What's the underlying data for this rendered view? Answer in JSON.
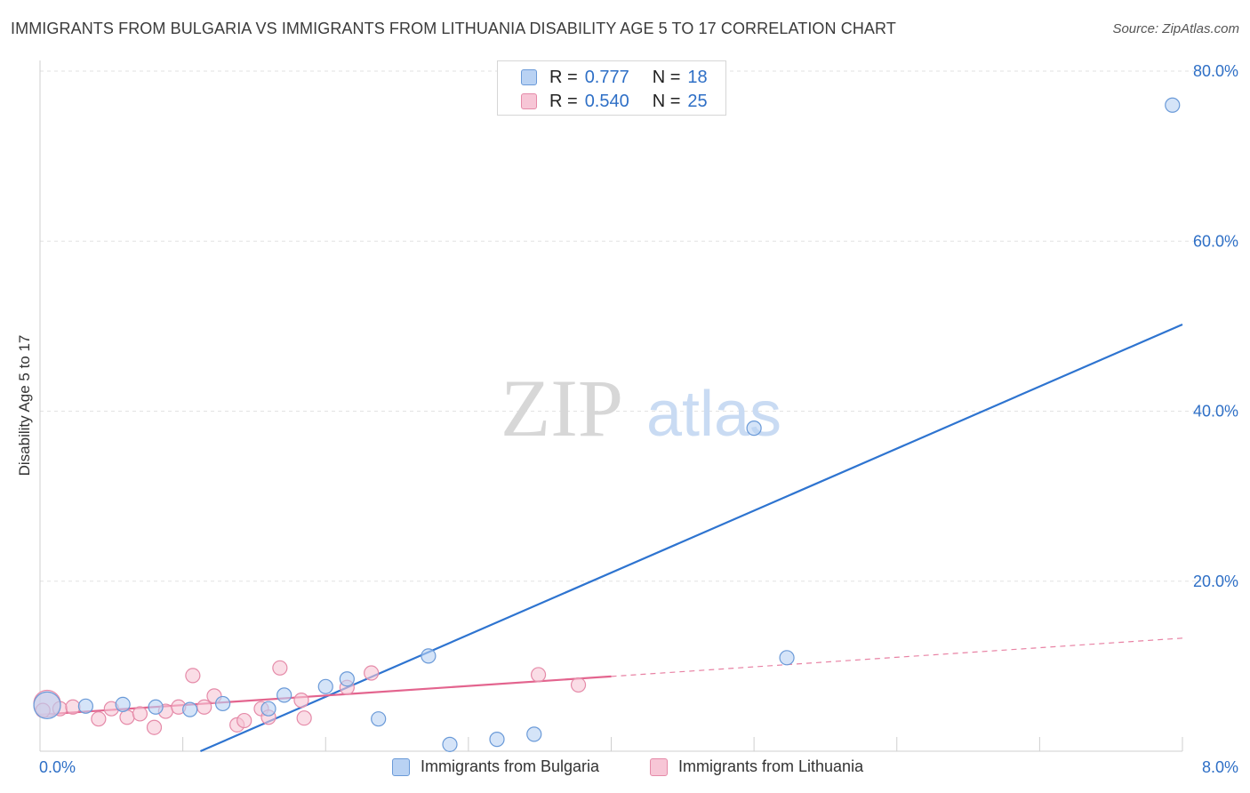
{
  "title": "IMMIGRANTS FROM BULGARIA VS IMMIGRANTS FROM LITHUANIA DISABILITY AGE 5 TO 17 CORRELATION CHART",
  "source": "Source: ZipAtlas.com",
  "watermark": {
    "zip": "ZIP",
    "atlas": "atlas"
  },
  "legend": [
    {
      "r_label": "R =",
      "r_value": "0.777",
      "n_label": "N =",
      "n_value": "18",
      "color": "#a9c6ef",
      "border": "#6a9ad8"
    },
    {
      "r_label": "R =",
      "r_value": "0.540",
      "n_label": "N =",
      "n_value": "25",
      "color": "#f7c1d2",
      "border": "#e58aa8"
    }
  ],
  "chart_data": {
    "type": "scatter",
    "title": "IMMIGRANTS FROM BULGARIA VS IMMIGRANTS FROM LITHUANIA DISABILITY AGE 5 TO 17 CORRELATION CHART",
    "xlabel": "",
    "ylabel": "Disability Age 5 to 17",
    "xlim": [
      0,
      8
    ],
    "ylim": [
      0,
      80
    ],
    "x_tick_labels": [
      "0.0%",
      "8.0%"
    ],
    "y_ticks": [
      20,
      40,
      60,
      80
    ],
    "y_tick_labels": [
      "20.0%",
      "40.0%",
      "60.0%",
      "80.0%"
    ],
    "grid": true,
    "legend_position": "top-center",
    "series": [
      {
        "name": "Immigrants from Bulgaria",
        "color": "#6a9ad8",
        "fill": "#b9d2f3",
        "trend_color": "#2e74d0",
        "points": [
          {
            "x": 0.05,
            "y": 5.4,
            "big": true
          },
          {
            "x": 0.32,
            "y": 5.3
          },
          {
            "x": 0.58,
            "y": 5.5
          },
          {
            "x": 0.81,
            "y": 5.2
          },
          {
            "x": 1.05,
            "y": 4.9
          },
          {
            "x": 1.28,
            "y": 5.6
          },
          {
            "x": 1.6,
            "y": 5.0
          },
          {
            "x": 1.71,
            "y": 6.6
          },
          {
            "x": 2.0,
            "y": 7.6
          },
          {
            "x": 2.15,
            "y": 8.5
          },
          {
            "x": 2.37,
            "y": 3.8
          },
          {
            "x": 2.72,
            "y": 11.2
          },
          {
            "x": 2.87,
            "y": 0.8
          },
          {
            "x": 3.2,
            "y": 1.4
          },
          {
            "x": 3.46,
            "y": 2.0
          },
          {
            "x": 5.0,
            "y": 38.0
          },
          {
            "x": 5.23,
            "y": 11.0
          },
          {
            "x": 7.93,
            "y": 76.0
          }
        ],
        "trend": {
          "x0": 0.0,
          "y0": -8.2,
          "x1": 8.0,
          "y1": 50.2
        }
      },
      {
        "name": "Immigrants from Lithuania",
        "color": "#e58aa8",
        "fill": "#f7c6d6",
        "trend_color": "#e3648e",
        "points": [
          {
            "x": 0.05,
            "y": 5.6,
            "big": true
          },
          {
            "x": 0.14,
            "y": 5.0
          },
          {
            "x": 0.23,
            "y": 5.2
          },
          {
            "x": 0.41,
            "y": 3.8
          },
          {
            "x": 0.5,
            "y": 5.0
          },
          {
            "x": 0.61,
            "y": 4.0
          },
          {
            "x": 0.7,
            "y": 4.4
          },
          {
            "x": 0.8,
            "y": 2.8
          },
          {
            "x": 0.88,
            "y": 4.7
          },
          {
            "x": 0.97,
            "y": 5.2
          },
          {
            "x": 1.07,
            "y": 8.9
          },
          {
            "x": 1.15,
            "y": 5.2
          },
          {
            "x": 1.22,
            "y": 6.5
          },
          {
            "x": 1.38,
            "y": 3.1
          },
          {
            "x": 1.43,
            "y": 3.6
          },
          {
            "x": 1.55,
            "y": 5.0
          },
          {
            "x": 1.6,
            "y": 4.0
          },
          {
            "x": 1.68,
            "y": 9.8
          },
          {
            "x": 1.83,
            "y": 6.0
          },
          {
            "x": 1.85,
            "y": 3.9
          },
          {
            "x": 2.15,
            "y": 7.5
          },
          {
            "x": 2.32,
            "y": 9.2
          },
          {
            "x": 3.49,
            "y": 9.0
          },
          {
            "x": 3.77,
            "y": 7.8
          },
          {
            "x": 0.02,
            "y": 4.8
          }
        ],
        "trend": {
          "x0": 0.0,
          "y0": 4.3,
          "x1": 4.0,
          "y1": 8.8
        },
        "trend_dashed": {
          "x0": 4.0,
          "y0": 8.8,
          "x1": 8.0,
          "y1": 13.3
        }
      }
    ]
  },
  "bottom_legend": [
    {
      "label": "Immigrants from Bulgaria",
      "color": "#b9d2f3",
      "border": "#6a9ad8"
    },
    {
      "label": "Immigrants from Lithuania",
      "color": "#f7c6d6",
      "border": "#e58aa8"
    }
  ]
}
